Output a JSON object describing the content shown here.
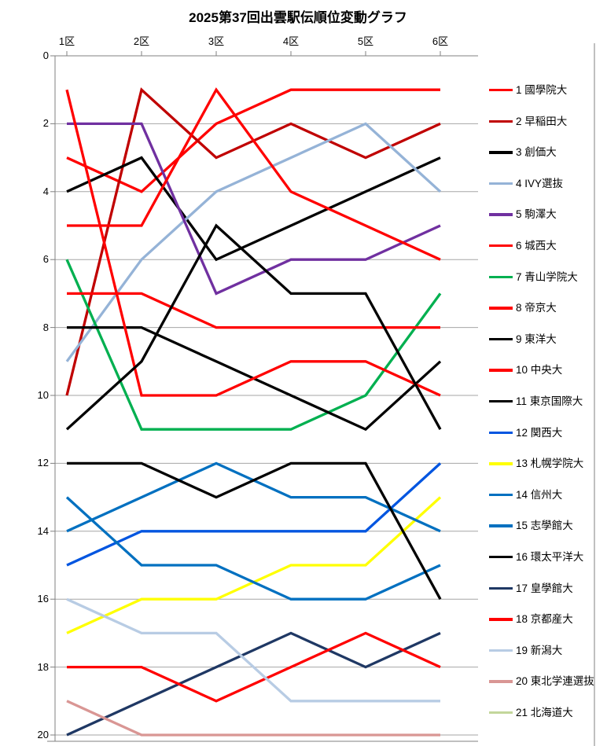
{
  "title": "2025第37回出雲駅伝順位変動グラフ",
  "axis": {
    "x_tick_labels": [
      "1区",
      "2区",
      "3区",
      "4区",
      "5区",
      "6区"
    ],
    "y_tick_labels": [
      "0",
      "2",
      "4",
      "6",
      "8",
      "10",
      "12",
      "14",
      "16",
      "18",
      "20"
    ]
  },
  "chart_data": {
    "type": "line",
    "title": "2025第37回出雲駅伝順位変動グラフ",
    "xlabel": "",
    "ylabel": "",
    "x_categories": [
      "1区",
      "2区",
      "3区",
      "4区",
      "5区",
      "6区"
    ],
    "y_axis": {
      "min": 0,
      "max": 20,
      "tick_step": 2,
      "inverted": true,
      "grid": true,
      "note": "rank scale, 1 = first place, axis labels at top"
    },
    "legend_position": "right",
    "series": [
      {
        "final_rank": 1,
        "name": "國學院大",
        "label": "1 國學院大",
        "color": "#FF0000",
        "ranks": [
          3,
          4,
          2,
          1,
          1,
          1
        ]
      },
      {
        "final_rank": 2,
        "name": "早稲田大",
        "label": "2 早稲田大",
        "color": "#C00000",
        "ranks": [
          10,
          1,
          3,
          2,
          3,
          2
        ]
      },
      {
        "final_rank": 3,
        "name": "創価大",
        "label": "3 創価大",
        "color": "#000000",
        "ranks": [
          4,
          3,
          6,
          5,
          4,
          3
        ]
      },
      {
        "final_rank": 4,
        "name": "IVY選抜",
        "label": "4 IVY選抜",
        "color": "#95B3D7",
        "ranks": [
          9,
          6,
          4,
          3,
          2,
          4
        ]
      },
      {
        "final_rank": 5,
        "name": "駒澤大",
        "label": "5 駒澤大",
        "color": "#7030A0",
        "ranks": [
          2,
          2,
          7,
          6,
          6,
          5
        ]
      },
      {
        "final_rank": 6,
        "name": "城西大",
        "label": "6 城西大",
        "color": "#FF0000",
        "ranks": [
          5,
          5,
          1,
          4,
          5,
          6
        ]
      },
      {
        "final_rank": 7,
        "name": "青山学院大",
        "label": "7 青山学院大",
        "color": "#00B050",
        "ranks": [
          6,
          11,
          11,
          11,
          10,
          7
        ]
      },
      {
        "final_rank": 8,
        "name": "帝京大",
        "label": "8 帝京大",
        "color": "#FF0000",
        "ranks": [
          7,
          7,
          8,
          8,
          8,
          8
        ]
      },
      {
        "final_rank": 9,
        "name": "東洋大",
        "label": "9 東洋大",
        "color": "#000000",
        "ranks": [
          8,
          8,
          9,
          10,
          11,
          9
        ]
      },
      {
        "final_rank": 10,
        "name": "中央大",
        "label": "10 中央大",
        "color": "#FF0000",
        "ranks": [
          1,
          10,
          10,
          9,
          9,
          10
        ]
      },
      {
        "final_rank": 11,
        "name": "東京国際大",
        "label": "11 東京国際大",
        "color": "#000000",
        "ranks": [
          11,
          9,
          5,
          7,
          7,
          11
        ]
      },
      {
        "final_rank": 12,
        "name": "関西大",
        "label": "12 関西大",
        "color": "#0055E0",
        "ranks": [
          15,
          14,
          14,
          14,
          14,
          12
        ]
      },
      {
        "final_rank": 13,
        "name": "札幌学院大",
        "label": "13 札幌学院大",
        "color": "#FFFF00",
        "ranks": [
          17,
          16,
          16,
          15,
          15,
          13
        ]
      },
      {
        "final_rank": 14,
        "name": "信州大",
        "label": "14 信州大",
        "color": "#0070C0",
        "ranks": [
          14,
          13,
          12,
          13,
          13,
          14
        ]
      },
      {
        "final_rank": 15,
        "name": "志學館大",
        "label": "15 志學館大",
        "color": "#0070C0",
        "ranks": [
          13,
          15,
          15,
          16,
          16,
          15
        ]
      },
      {
        "final_rank": 16,
        "name": "環太平洋大",
        "label": "16 環太平洋大",
        "color": "#000000",
        "ranks": [
          12,
          12,
          13,
          12,
          12,
          16
        ]
      },
      {
        "final_rank": 17,
        "name": "皇學館大",
        "label": "17 皇學館大",
        "color": "#1F3864",
        "ranks": [
          20,
          19,
          18,
          17,
          18,
          17
        ]
      },
      {
        "final_rank": 18,
        "name": "京都産大",
        "label": "18 京都産大",
        "color": "#FF0000",
        "ranks": [
          18,
          18,
          19,
          18,
          17,
          18
        ]
      },
      {
        "final_rank": 19,
        "name": "新潟大",
        "label": "19 新潟大",
        "color": "#B8CCE4",
        "ranks": [
          16,
          17,
          17,
          19,
          19,
          19
        ]
      },
      {
        "final_rank": 20,
        "name": "東北学連選抜",
        "label": "20 東北学連選抜",
        "color": "#D99694",
        "ranks": [
          19,
          20,
          20,
          20,
          20,
          20
        ]
      },
      {
        "final_rank": 21,
        "name": "北海道大",
        "label": "21 北海道大",
        "color": "#C3D69B",
        "ranks": [
          21,
          21,
          21,
          21,
          21,
          21
        ]
      }
    ]
  },
  "colors": {
    "grid": "#A6A6A6",
    "axis": "#808080",
    "text": "#000000",
    "background": "#FFFFFF"
  }
}
